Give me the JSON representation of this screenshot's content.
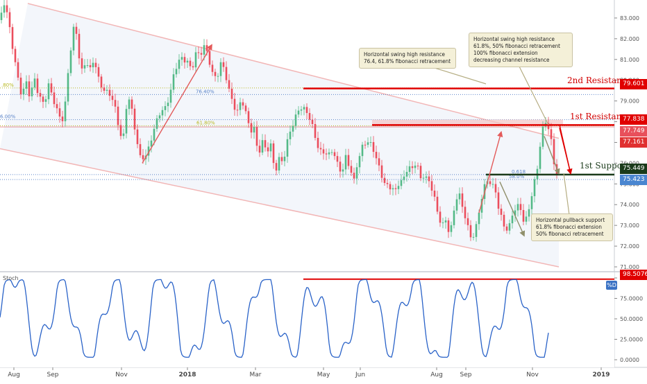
{
  "chart_data": [
    {
      "type": "candlestick",
      "panel": "price",
      "x_labels": [
        "Aug",
        "Sep",
        "Nov",
        "2018",
        "Mar",
        "May",
        "Jun",
        "Aug",
        "Sep",
        "Nov",
        "2019"
      ],
      "y_ticks": [
        "83.000",
        "82.000",
        "81.000",
        "80.000",
        "79.000",
        "78.000",
        "77.000",
        "76.000",
        "75.000",
        "74.000",
        "73.000",
        "72.000",
        "71.000"
      ],
      "ylim": [
        70.9,
        83.6
      ],
      "price_path": [
        [
          0,
          82.9
        ],
        [
          6,
          83.5
        ],
        [
          13,
          82.6
        ],
        [
          20,
          81.4
        ],
        [
          26,
          80.3
        ],
        [
          32,
          79.1
        ],
        [
          37,
          79.8
        ],
        [
          43,
          79.0
        ],
        [
          50,
          80.2
        ],
        [
          57,
          79.4
        ],
        [
          64,
          78.8
        ],
        [
          70,
          79.5
        ],
        [
          77,
          79.0
        ],
        [
          84,
          78.6
        ],
        [
          92,
          78.2
        ],
        [
          99,
          80.5
        ],
        [
          104,
          81.8
        ],
        [
          108,
          82.8
        ],
        [
          113,
          81.5
        ],
        [
          118,
          80.7
        ],
        [
          124,
          81.0
        ],
        [
          130,
          80.3
        ],
        [
          136,
          80.8
        ],
        [
          143,
          80.0
        ],
        [
          150,
          79.8
        ],
        [
          156,
          79.4
        ],
        [
          163,
          78.8
        ],
        [
          170,
          77.8
        ],
        [
          177,
          77.2
        ],
        [
          184,
          79.6
        ],
        [
          190,
          78.4
        ],
        [
          196,
          77.0
        ],
        [
          202,
          76.2
        ],
        [
          208,
          76.5
        ],
        [
          214,
          76.9
        ],
        [
          220,
          77.4
        ],
        [
          226,
          77.8
        ],
        [
          232,
          78.4
        ],
        [
          238,
          78.8
        ],
        [
          244,
          79.5
        ],
        [
          250,
          80.2
        ],
        [
          257,
          80.7
        ],
        [
          264,
          80.9
        ],
        [
          270,
          81.1
        ],
        [
          276,
          80.7
        ],
        [
          282,
          81.3
        ],
        [
          288,
          80.9
        ],
        [
          294,
          81.5
        ],
        [
          300,
          81.3
        ],
        [
          306,
          80.6
        ],
        [
          312,
          80.1
        ],
        [
          318,
          80.6
        ],
        [
          324,
          80.2
        ],
        [
          330,
          79.6
        ],
        [
          336,
          79.1
        ],
        [
          342,
          78.6
        ],
        [
          348,
          78.9
        ],
        [
          354,
          78.2
        ],
        [
          360,
          77.6
        ],
        [
          366,
          77.9
        ],
        [
          372,
          76.6
        ],
        [
          378,
          76.9
        ],
        [
          384,
          76.3
        ],
        [
          390,
          76.8
        ],
        [
          396,
          75.8
        ],
        [
          402,
          76.4
        ],
        [
          408,
          76.0
        ],
        [
          414,
          76.8
        ],
        [
          420,
          77.6
        ],
        [
          426,
          78.4
        ],
        [
          432,
          79.0
        ],
        [
          438,
          78.6
        ],
        [
          444,
          78.1
        ],
        [
          450,
          77.6
        ],
        [
          456,
          77.1
        ],
        [
          462,
          76.8
        ],
        [
          468,
          76.6
        ],
        [
          474,
          76.2
        ],
        [
          480,
          76.4
        ],
        [
          486,
          76.0
        ],
        [
          492,
          75.8
        ],
        [
          498,
          76.4
        ],
        [
          504,
          75.6
        ],
        [
          510,
          74.9
        ],
        [
          516,
          76.2
        ],
        [
          522,
          77.0
        ],
        [
          528,
          77.3
        ],
        [
          534,
          76.8
        ],
        [
          540,
          76.2
        ],
        [
          546,
          75.7
        ],
        [
          552,
          75.4
        ],
        [
          558,
          75.1
        ],
        [
          564,
          74.8
        ],
        [
          570,
          74.4
        ],
        [
          576,
          75.0
        ],
        [
          582,
          75.4
        ],
        [
          588,
          76.2
        ],
        [
          594,
          75.7
        ],
        [
          600,
          75.9
        ],
        [
          606,
          75.0
        ],
        [
          612,
          75.6
        ],
        [
          618,
          75.3
        ],
        [
          624,
          74.8
        ],
        [
          630,
          73.4
        ],
        [
          636,
          72.8
        ],
        [
          642,
          73.2
        ],
        [
          648,
          72.9
        ],
        [
          654,
          73.8
        ],
        [
          660,
          74.6
        ],
        [
          666,
          73.6
        ],
        [
          672,
          73.2
        ],
        [
          678,
          72.6
        ],
        [
          684,
          72.9
        ],
        [
          690,
          73.5
        ],
        [
          696,
          74.5
        ],
        [
          702,
          75.0
        ],
        [
          708,
          75.3
        ],
        [
          714,
          74.8
        ],
        [
          720,
          73.6
        ],
        [
          726,
          72.7
        ],
        [
          732,
          72.6
        ],
        [
          738,
          73.6
        ],
        [
          744,
          74.3
        ],
        [
          750,
          73.8
        ],
        [
          756,
          72.8
        ],
        [
          762,
          73.6
        ],
        [
          768,
          74.9
        ],
        [
          774,
          76.0
        ],
        [
          780,
          77.6
        ],
        [
          786,
          77.8
        ],
        [
          792,
          77.3
        ],
        [
          798,
          76.0
        ],
        [
          804,
          75.6
        ]
      ],
      "channel": {
        "upper": [
          [
            40,
            83.7
          ],
          [
            805,
            77.2
          ]
        ],
        "lower": [
          [
            0,
            76.7
          ],
          [
            805,
            71.0
          ]
        ]
      },
      "trend_arrows": [
        {
          "from": [
            205,
            76.0
          ],
          "to": [
            305,
            81.7
          ],
          "color": "#e35a5a"
        },
        {
          "from": [
            690,
            73.6
          ],
          "to": [
            722,
            77.5
          ],
          "color": "#e35a5a"
        },
        {
          "from": [
            806,
            77.7
          ],
          "to": [
            822,
            75.5
          ],
          "color": "#e00000"
        },
        {
          "from": [
            784,
            77.3
          ],
          "to": [
            805,
            75.5
          ],
          "color": "#8f8f6a"
        },
        {
          "from": [
            720,
            75.1
          ],
          "to": [
            755,
            72.5
          ],
          "color": "#8f8f6a"
        }
      ],
      "levels": [
        {
          "name": "2nd Resistance",
          "value": 79.601,
          "value_label": "79.601",
          "color": "#e00000",
          "from_x": 437
        },
        {
          "name": "1st Resistance",
          "value": 77.838,
          "value_label": "77.838",
          "color": "#e00000",
          "from_x": 536
        },
        {
          "name": "1st Support",
          "value": 75.449,
          "value_label": "75.449",
          "color": "#1a3a1a",
          "from_x": 700
        }
      ],
      "fib_lines": [
        {
          "label": ".80%",
          "value": 79.625,
          "color": "#b8b820"
        },
        {
          "label": "76.40%",
          "value": 79.31,
          "color": "#5b84c9"
        },
        {
          "label": "6.00%",
          "value": 78.1,
          "color": "#5b84c9"
        },
        {
          "label": "61.80%",
          "value": 77.8,
          "color": "#b8b820"
        },
        {
          "label": "58.0%",
          "value": 75.21,
          "color": "#5b84c9"
        },
        {
          "label": "0.618",
          "value": 75.45,
          "color": "#5b84c9"
        }
      ],
      "current_price": {
        "value": 77.749,
        "label": "77.749"
      },
      "other_tags": [
        {
          "label": "77.161",
          "value": 77.161,
          "color": "#e03030"
        },
        {
          "label": "75.423",
          "value": 75.423,
          "color": "#4a86d0"
        }
      ],
      "annotations": [
        "Horizontal swing high resistance\n76.4, 61.8% fibonacci retracement",
        "Horizontal swing high resistance\n61.8%, 50% fibonacci retracement\n100% fibonacci extension\ndecreasing channel resistance",
        "Horizontal pullback support\n61.8% fibonacci extension\n50% fibonacci retracement"
      ],
      "colors": {
        "up": "#53b987",
        "down": "#eb4d5c",
        "channel": "#f2b6b6",
        "channel_fill": "#e9eef8"
      }
    },
    {
      "type": "line",
      "panel": "indicator",
      "name": "Stoch",
      "legend": "%D",
      "y_ticks": [
        "100.0000",
        "75.0000",
        "50.0000",
        "25.0000",
        "0.0000"
      ],
      "ylim": [
        0,
        100
      ],
      "current_value": {
        "value": 98.5076,
        "label": "98.5076"
      },
      "resistance_value": 98.5076,
      "color": "#2962c8"
    }
  ]
}
